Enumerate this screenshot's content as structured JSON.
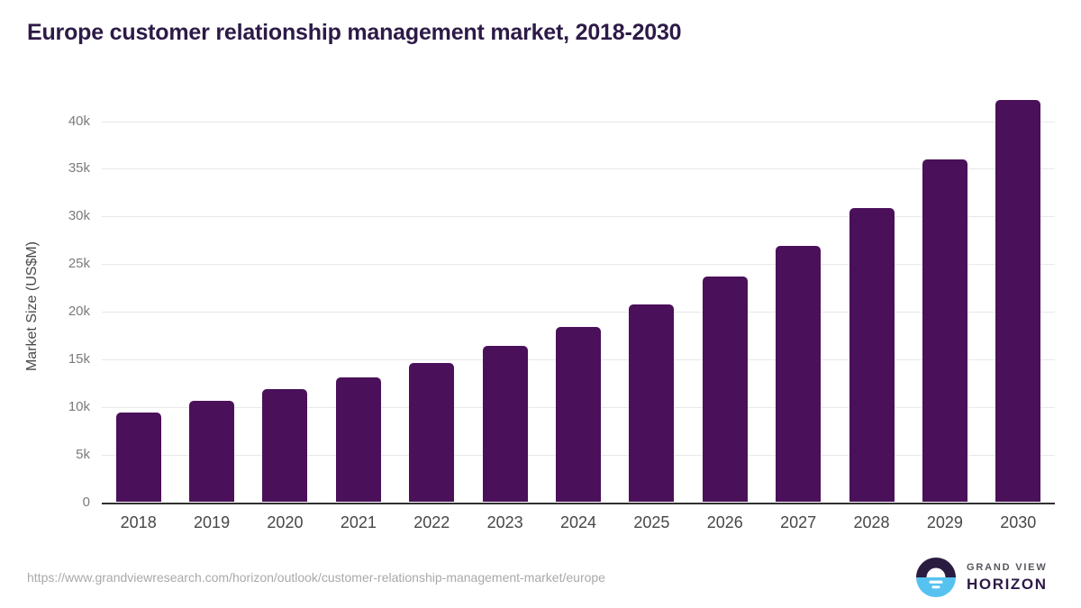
{
  "title": "Europe customer relationship management market, 2018-2030",
  "chart_data": {
    "type": "bar",
    "title": "Europe customer relationship management market, 2018-2030",
    "categories": [
      "2018",
      "2019",
      "2020",
      "2021",
      "2022",
      "2023",
      "2024",
      "2025",
      "2026",
      "2027",
      "2028",
      "2029",
      "2030"
    ],
    "values": [
      9400,
      10600,
      11850,
      13100,
      14650,
      16450,
      18400,
      20800,
      23650,
      26900,
      30900,
      35950,
      42200
    ],
    "unit": "US$M",
    "xlabel": "",
    "ylabel": "Market Size (US$M)",
    "ylim": [
      0,
      42500
    ],
    "yticks": [
      0,
      5000,
      10000,
      15000,
      20000,
      25000,
      30000,
      35000,
      40000
    ],
    "ytick_labels": [
      "0",
      "5k",
      "10k",
      "15k",
      "20k",
      "25k",
      "30k",
      "35k",
      "40k"
    ],
    "grid": "horizontal",
    "legend": "none",
    "bar_color": "#4a1059"
  },
  "footer": {
    "source_url": "https://www.grandviewresearch.com/horizon/outlook/customer-relationship-management-market/europe",
    "logo": {
      "top": "GRAND VIEW",
      "bottom": "HORIZON"
    }
  },
  "colors": {
    "bar": "#4a1059",
    "title_text": "#2d1a47",
    "ytick_text": "#7b7b7b",
    "xtick_text": "#474747",
    "axis_title_text": "#4a4a4a",
    "gridline": "#e8e8e8",
    "baseline": "#303030",
    "source_text": "#a9a9a9",
    "logo_dark": "#2a1b41",
    "logo_blue": "#56c2f0"
  }
}
